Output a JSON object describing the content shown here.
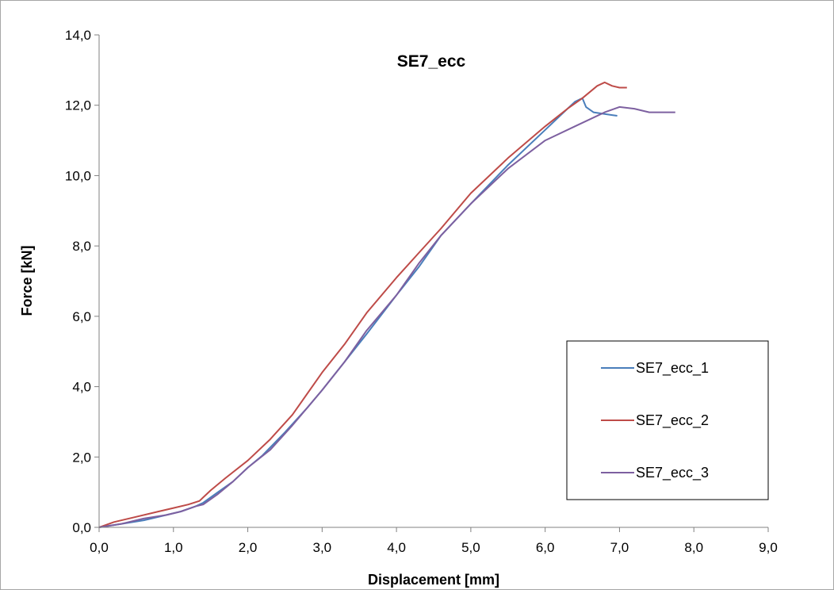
{
  "chart_data": {
    "type": "line",
    "title": "SE7_ecc",
    "xlabel": "Displacement [mm]",
    "ylabel": "Force [kN]",
    "xlim": [
      0,
      9
    ],
    "ylim": [
      0,
      14
    ],
    "x_ticks": [
      "0,0",
      "1,0",
      "2,0",
      "3,0",
      "4,0",
      "5,0",
      "6,0",
      "7,0",
      "8,0",
      "9,0"
    ],
    "y_ticks": [
      "0,0",
      "2,0",
      "4,0",
      "6,0",
      "8,0",
      "10,0",
      "12,0",
      "14,0"
    ],
    "grid": false,
    "legend_position": "lower-right",
    "series": [
      {
        "name": "SE7_ecc_1",
        "color": "#4a7ebb",
        "points": [
          [
            0.0,
            0.0
          ],
          [
            0.3,
            0.1
          ],
          [
            0.6,
            0.2
          ],
          [
            0.9,
            0.35
          ],
          [
            1.1,
            0.45
          ],
          [
            1.3,
            0.6
          ],
          [
            1.4,
            0.7
          ],
          [
            1.6,
            1.0
          ],
          [
            1.8,
            1.3
          ],
          [
            2.0,
            1.7
          ],
          [
            2.2,
            2.05
          ],
          [
            2.5,
            2.7
          ],
          [
            2.8,
            3.4
          ],
          [
            3.0,
            3.9
          ],
          [
            3.3,
            4.7
          ],
          [
            3.6,
            5.5
          ],
          [
            4.0,
            6.6
          ],
          [
            4.3,
            7.4
          ],
          [
            4.6,
            8.3
          ],
          [
            5.0,
            9.2
          ],
          [
            5.5,
            10.3
          ],
          [
            6.0,
            11.3
          ],
          [
            6.2,
            11.7
          ],
          [
            6.4,
            12.1
          ],
          [
            6.5,
            12.2
          ],
          [
            6.55,
            11.95
          ],
          [
            6.65,
            11.8
          ],
          [
            6.8,
            11.75
          ],
          [
            6.9,
            11.72
          ],
          [
            6.97,
            11.7
          ]
        ]
      },
      {
        "name": "SE7_ecc_2",
        "color": "#be4b48",
        "points": [
          [
            0.0,
            0.0
          ],
          [
            0.2,
            0.15
          ],
          [
            0.5,
            0.3
          ],
          [
            0.8,
            0.45
          ],
          [
            1.0,
            0.55
          ],
          [
            1.2,
            0.65
          ],
          [
            1.35,
            0.75
          ],
          [
            1.5,
            1.05
          ],
          [
            1.7,
            1.4
          ],
          [
            2.0,
            1.9
          ],
          [
            2.3,
            2.5
          ],
          [
            2.6,
            3.2
          ],
          [
            3.0,
            4.4
          ],
          [
            3.3,
            5.2
          ],
          [
            3.6,
            6.1
          ],
          [
            4.0,
            7.1
          ],
          [
            4.3,
            7.8
          ],
          [
            4.6,
            8.5
          ],
          [
            5.0,
            9.5
          ],
          [
            5.5,
            10.5
          ],
          [
            6.0,
            11.4
          ],
          [
            6.3,
            11.9
          ],
          [
            6.5,
            12.2
          ],
          [
            6.7,
            12.55
          ],
          [
            6.8,
            12.65
          ],
          [
            6.9,
            12.55
          ],
          [
            7.0,
            12.5
          ],
          [
            7.1,
            12.5
          ]
        ]
      },
      {
        "name": "SE7_ecc_3",
        "color": "#7d60a0",
        "points": [
          [
            0.0,
            0.0
          ],
          [
            0.3,
            0.1
          ],
          [
            0.6,
            0.25
          ],
          [
            0.9,
            0.35
          ],
          [
            1.1,
            0.45
          ],
          [
            1.3,
            0.6
          ],
          [
            1.4,
            0.65
          ],
          [
            1.6,
            0.95
          ],
          [
            1.8,
            1.3
          ],
          [
            2.0,
            1.7
          ],
          [
            2.3,
            2.2
          ],
          [
            2.6,
            2.9
          ],
          [
            3.0,
            3.9
          ],
          [
            3.3,
            4.7
          ],
          [
            3.6,
            5.6
          ],
          [
            4.0,
            6.6
          ],
          [
            4.3,
            7.5
          ],
          [
            4.6,
            8.3
          ],
          [
            5.0,
            9.2
          ],
          [
            5.5,
            10.2
          ],
          [
            6.0,
            11.0
          ],
          [
            6.4,
            11.4
          ],
          [
            6.8,
            11.8
          ],
          [
            7.0,
            11.95
          ],
          [
            7.2,
            11.9
          ],
          [
            7.4,
            11.8
          ],
          [
            7.6,
            11.8
          ],
          [
            7.75,
            11.8
          ]
        ]
      }
    ]
  }
}
